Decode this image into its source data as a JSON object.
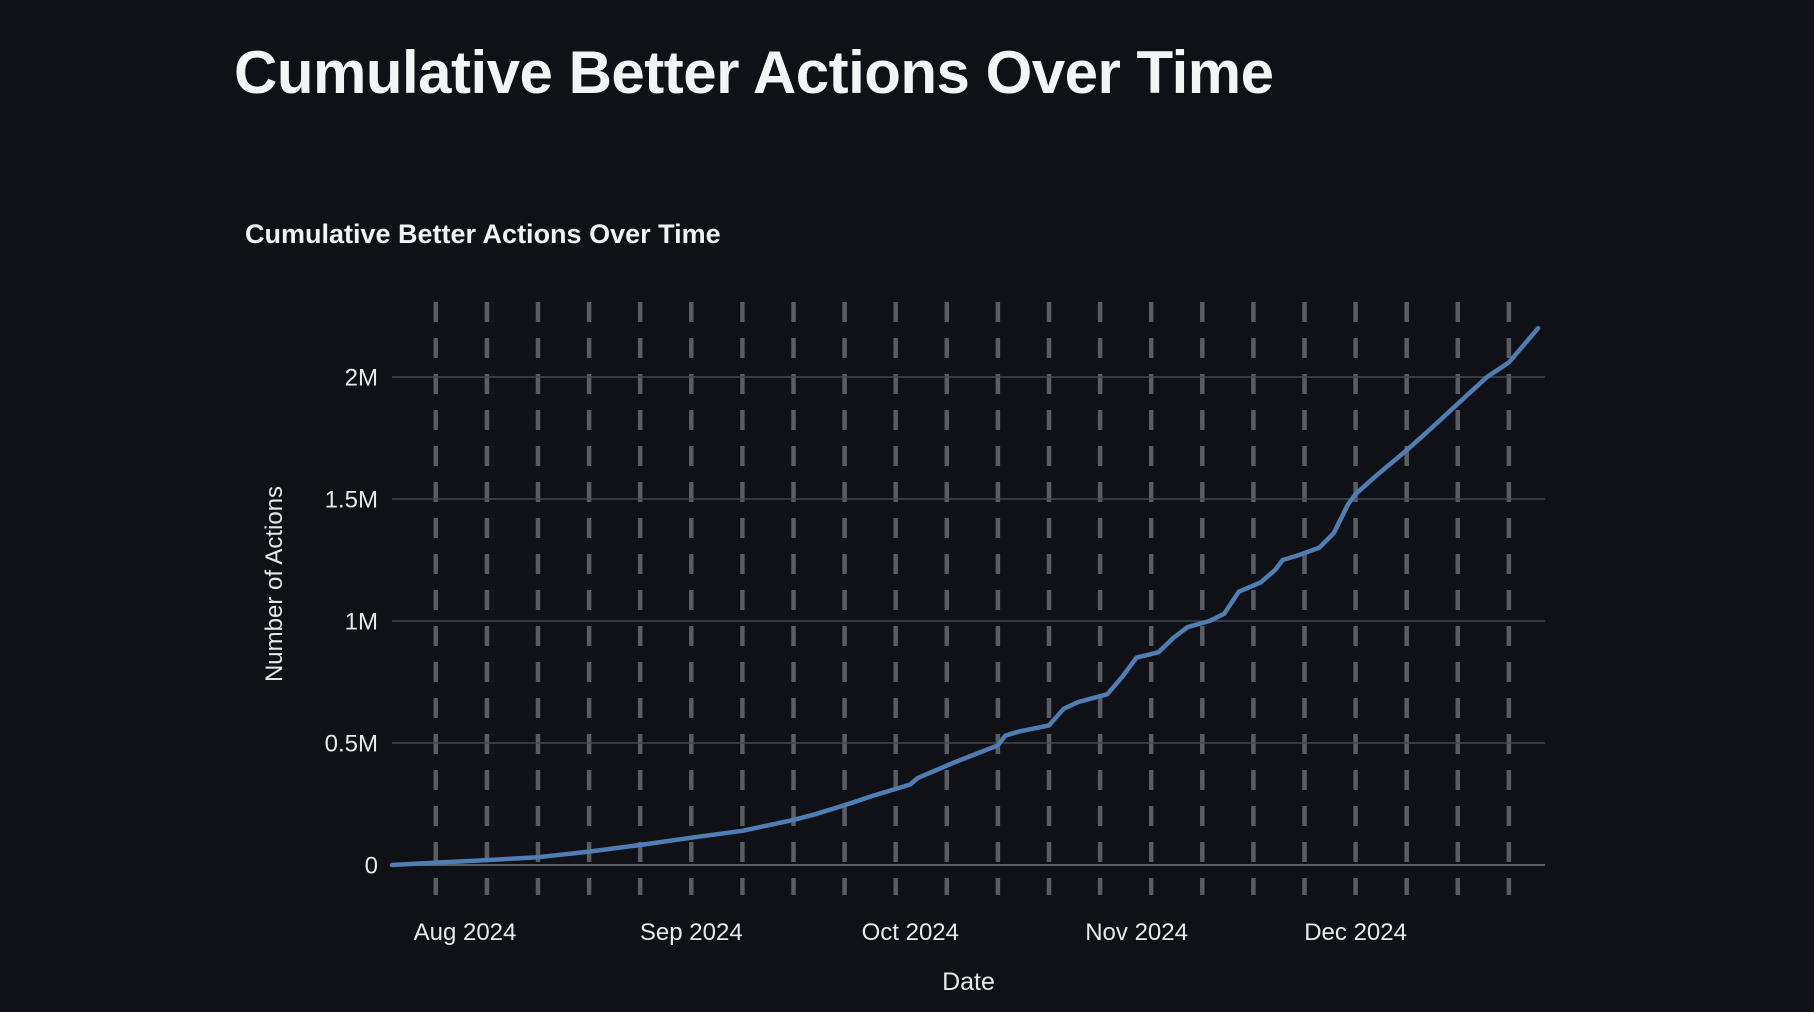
{
  "page": {
    "title": "Cumulative Better Actions Over Time",
    "background_color": "#0f1116"
  },
  "chart": {
    "title": "Cumulative Better Actions Over Time",
    "colors": {
      "line": "#4e7eb3",
      "grid_solid": "#45484f",
      "grid_zero_line": "#5d6066",
      "grid_dashed": "#5a5d63",
      "tick_text": "#e6e8eb",
      "axis_title_text": "#e6e8eb",
      "title_text": "#f0f2f4"
    }
  },
  "chart_data": {
    "type": "line",
    "title": "Cumulative Better Actions Over Time",
    "xlabel": "Date",
    "ylabel": "Number of Actions",
    "legend": "none",
    "grid": {
      "horizontal": "solid",
      "vertical": "dashed-weekly"
    },
    "xlim": [
      "2024-07-22",
      "2024-12-27"
    ],
    "ylim": [
      0,
      2310000
    ],
    "x_ticks": [
      "2024-08-01",
      "2024-09-01",
      "2024-10-01",
      "2024-11-01",
      "2024-12-01"
    ],
    "x_tick_labels": [
      "Aug 2024",
      "Sep 2024",
      "Oct 2024",
      "Nov 2024",
      "Dec 2024"
    ],
    "y_ticks": [
      0,
      500000,
      1000000,
      1500000,
      2000000
    ],
    "y_tick_labels": [
      "0",
      "0.5M",
      "1M",
      "1.5M",
      "2M"
    ],
    "vertical_gridline_dates": {
      "first": "2024-07-28",
      "last": "2024-12-22",
      "step_days": 7
    },
    "series": [
      {
        "name": "Cumulative Better Actions",
        "color": "#4e7eb3",
        "points": [
          [
            "2024-07-22",
            0
          ],
          [
            "2024-07-28",
            10000
          ],
          [
            "2024-08-04",
            20000
          ],
          [
            "2024-08-11",
            32000
          ],
          [
            "2024-08-18",
            55000
          ],
          [
            "2024-08-25",
            82000
          ],
          [
            "2024-09-01",
            112000
          ],
          [
            "2024-09-08",
            140000
          ],
          [
            "2024-09-15",
            185000
          ],
          [
            "2024-09-18",
            208000
          ],
          [
            "2024-09-22",
            245000
          ],
          [
            "2024-09-26",
            285000
          ],
          [
            "2024-10-01",
            330000
          ],
          [
            "2024-10-02",
            356000
          ],
          [
            "2024-10-07",
            420000
          ],
          [
            "2024-10-13",
            490000
          ],
          [
            "2024-10-14",
            530000
          ],
          [
            "2024-10-16",
            548000
          ],
          [
            "2024-10-20",
            572000
          ],
          [
            "2024-10-22",
            640000
          ],
          [
            "2024-10-24",
            668000
          ],
          [
            "2024-10-27",
            692000
          ],
          [
            "2024-10-28",
            700000
          ],
          [
            "2024-10-30",
            770000
          ],
          [
            "2024-11-01",
            850000
          ],
          [
            "2024-11-04",
            872000
          ],
          [
            "2024-11-06",
            930000
          ],
          [
            "2024-11-08",
            975000
          ],
          [
            "2024-11-11",
            1000000
          ],
          [
            "2024-11-13",
            1030000
          ],
          [
            "2024-11-15",
            1120000
          ],
          [
            "2024-11-18",
            1158000
          ],
          [
            "2024-11-20",
            1210000
          ],
          [
            "2024-11-21",
            1250000
          ],
          [
            "2024-11-23",
            1268000
          ],
          [
            "2024-11-26",
            1300000
          ],
          [
            "2024-11-28",
            1360000
          ],
          [
            "2024-11-30",
            1480000
          ],
          [
            "2024-12-01",
            1520000
          ],
          [
            "2024-12-04",
            1600000
          ],
          [
            "2024-12-08",
            1700000
          ],
          [
            "2024-12-11",
            1780000
          ],
          [
            "2024-12-15",
            1890000
          ],
          [
            "2024-12-19",
            2000000
          ],
          [
            "2024-12-22",
            2060000
          ],
          [
            "2024-12-24",
            2130000
          ],
          [
            "2024-12-26",
            2200000
          ]
        ]
      }
    ]
  }
}
